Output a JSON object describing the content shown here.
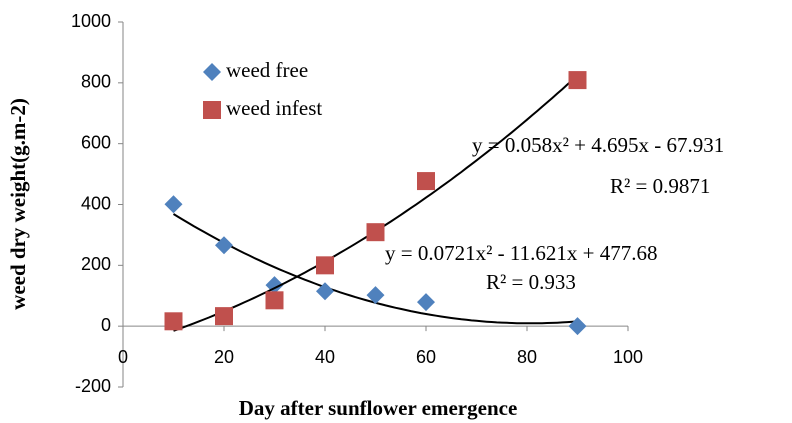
{
  "chart_data": {
    "type": "scatter",
    "x_label": "Day after sunflower emergence",
    "y_label": "weed dry weight(g.m-2)",
    "xlim": [
      0,
      100
    ],
    "xticks": [
      0,
      20,
      40,
      60,
      80,
      100
    ],
    "ylim": [
      -200,
      1000
    ],
    "yticks": [
      -200,
      0,
      200,
      400,
      600,
      800,
      1000
    ],
    "legend": "upper left",
    "series": [
      {
        "name": "weed free",
        "color": "#4f81bd",
        "marker": "diamond",
        "x": [
          10,
          20,
          30,
          40,
          50,
          60,
          90
        ],
        "values": [
          401,
          266,
          135,
          115,
          102,
          79,
          0
        ],
        "trendline": {
          "coefficients": [
            0.0721,
            -11.621,
            477.68
          ],
          "equation": "y = 0.0721x² - 11.621x + 477.68",
          "r_squared_label": "R² = 0.933"
        }
      },
      {
        "name": "weed infest",
        "color": "#c0504d",
        "marker": "square",
        "x": [
          10,
          20,
          30,
          40,
          50,
          60,
          90
        ],
        "values": [
          16,
          33,
          85,
          200,
          309,
          477,
          809
        ],
        "trendline": {
          "coefficients": [
            0.058,
            4.695,
            -67.931
          ],
          "equation": "y = 0.058x² + 4.695x - 67.931",
          "r_squared_label": "R² = 0.9871"
        }
      }
    ]
  }
}
